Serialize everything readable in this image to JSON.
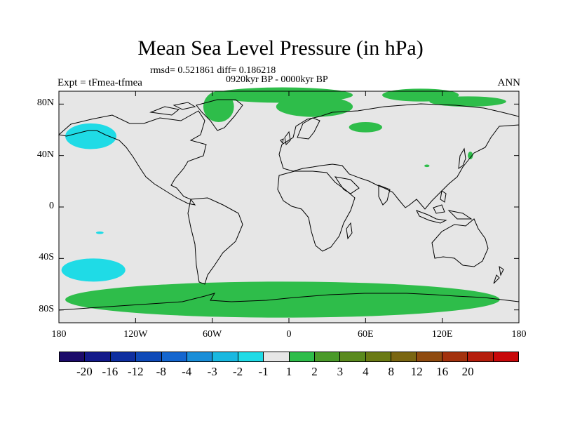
{
  "title": "Mean Sea Level Pressure (in hPa)",
  "stats": "rmsd= 0.521861 diff= 0.186218",
  "period": "0920kyr BP - 0000kyr BP",
  "experiment": "Expt = tFmea-tfmea",
  "season": "ANN",
  "map": {
    "projection": "cylindrical equidistant",
    "lon_range": [
      -180,
      180
    ],
    "lat_range": [
      -90,
      90
    ],
    "background_color": "#e6e6e6",
    "positive_anomaly_color": "#2ebd4a",
    "negative_anomaly_color": "#1fdbe6",
    "lat_ticks": [
      {
        "value": 80,
        "label": "80N"
      },
      {
        "value": 40,
        "label": "40N"
      },
      {
        "value": 0,
        "label": "0"
      },
      {
        "value": -40,
        "label": "40S"
      },
      {
        "value": -80,
        "label": "80S"
      }
    ],
    "lon_ticks": [
      {
        "value": -180,
        "label": "180"
      },
      {
        "value": -120,
        "label": "120W"
      },
      {
        "value": -60,
        "label": "60W"
      },
      {
        "value": 0,
        "label": "0"
      },
      {
        "value": 60,
        "label": "60E"
      },
      {
        "value": 120,
        "label": "120E"
      },
      {
        "value": 180,
        "label": "180"
      }
    ],
    "anomaly_regions": [
      {
        "name": "north-pacific-low",
        "sign": "negative",
        "lon": -155,
        "lat": 55,
        "dlon": 20,
        "dlat": 10
      },
      {
        "name": "south-pacific-low",
        "sign": "negative",
        "lon": -153,
        "lat": -49,
        "dlon": 25,
        "dlat": 9
      },
      {
        "name": "tropical-pacific-speck",
        "sign": "negative",
        "lon": -148,
        "lat": -20,
        "dlon": 3,
        "dlat": 1
      },
      {
        "name": "arctic-high",
        "sign": "positive",
        "lon": -5,
        "lat": 87,
        "dlon": 55,
        "dlat": 6
      },
      {
        "name": "greenland-sea-high",
        "sign": "positive",
        "lon": -55,
        "lat": 78,
        "dlon": 12,
        "dlat": 12
      },
      {
        "name": "barents-high",
        "sign": "positive",
        "lon": 20,
        "lat": 78,
        "dlon": 30,
        "dlat": 8
      },
      {
        "name": "siberia-high",
        "sign": "positive",
        "lon": 103,
        "lat": 87,
        "dlon": 30,
        "dlat": 5
      },
      {
        "name": "east-arctic-high",
        "sign": "positive",
        "lon": 140,
        "lat": 82,
        "dlon": 30,
        "dlat": 4
      },
      {
        "name": "west-siberia-high",
        "sign": "positive",
        "lon": 60,
        "lat": 62,
        "dlon": 13,
        "dlat": 4
      },
      {
        "name": "japan-high",
        "sign": "positive",
        "lon": 142,
        "lat": 40,
        "dlon": 2,
        "dlat": 3
      },
      {
        "name": "china-speck",
        "sign": "positive",
        "lon": 108,
        "lat": 32,
        "dlon": 2,
        "dlat": 1
      },
      {
        "name": "antarctic-high",
        "sign": "positive",
        "lon": -5,
        "lat": -72,
        "dlon": 170,
        "dlat": 14
      }
    ]
  },
  "colorbar": {
    "colors": [
      "#1c0b6a",
      "#131a8a",
      "#0f2fa0",
      "#0f4ab8",
      "#1466cf",
      "#1a8ed8",
      "#19b8e0",
      "#1fdbe6",
      "#e6e6e6",
      "#2ebd4a",
      "#4a9a2a",
      "#5a8a1e",
      "#6a7a14",
      "#7a6612",
      "#8f4b10",
      "#a3320e",
      "#b51d0c",
      "#c8080a"
    ],
    "labels": [
      "-20",
      "-16",
      "-12",
      "-8",
      "-4",
      "-3",
      "-2",
      "-1",
      "1",
      "2",
      "3",
      "4",
      "8",
      "12",
      "16",
      "20"
    ]
  }
}
